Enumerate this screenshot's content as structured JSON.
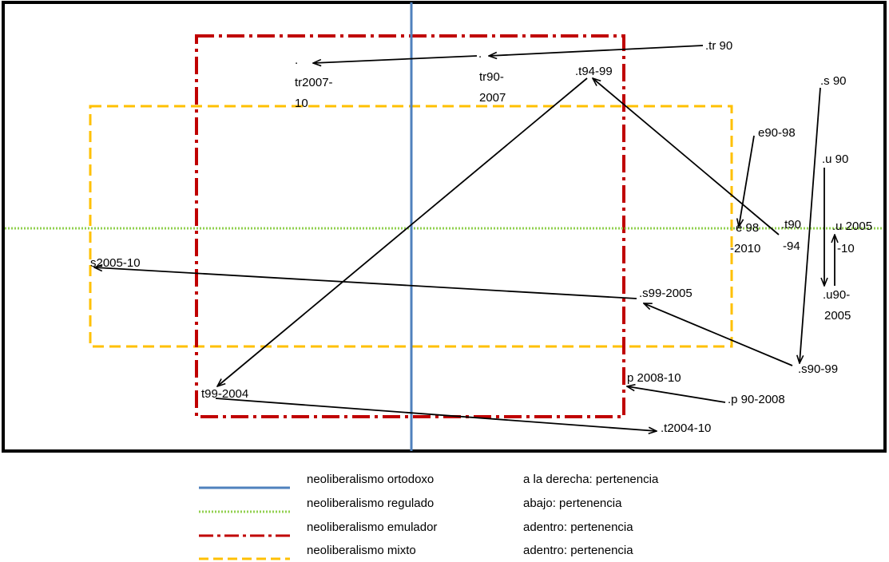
{
  "colors": {
    "ortodoxo": "#4f81bd",
    "regulado": "#92d050",
    "emulador": "#c00000",
    "mixto": "#ffc000",
    "frame": "#000000",
    "arrow": "#000000"
  },
  "nodes": {
    "tr90": ".tr 90",
    "tr90_2007_a": ".",
    "tr90_2007_b": "tr90-",
    "tr90_2007_c": "2007",
    "tr2007_a": ".",
    "tr2007_b": "tr2007-",
    "tr2007_c": "10",
    "t94_99": ".t94-99",
    "s90": ".s 90",
    "e90_98": "e90-98",
    "u90": ".u 90",
    "e98_a": "e 98",
    "e98_b": "-2010",
    "t90_94_a": ".t90",
    "t90_94_b": "-94",
    "u2005_a": ".u 2005",
    "u2005_b": "-10",
    "s2005_10": "s2005-10",
    "s99_2005": ".s99-2005",
    "u90_2005_a": ".u90-",
    "u90_2005_b": "2005",
    "s90_99": ".s90-99",
    "p2008_10": "p 2008-10",
    "p90_2008": ".p 90-2008",
    "t99_2004": "t99-2004",
    "t2004_10": ".t2004-10"
  },
  "legend": [
    {
      "name": "neoliberalismo ortodoxo",
      "desc": "a la derecha: pertenencia"
    },
    {
      "name": "neoliberalismo regulado",
      "desc": "abajo: pertenencia"
    },
    {
      "name": "neoliberalismo emulador",
      "desc": "adentro: pertenencia"
    },
    {
      "name": "neoliberalismo mixto",
      "desc": "adentro: pertenencia"
    }
  ]
}
